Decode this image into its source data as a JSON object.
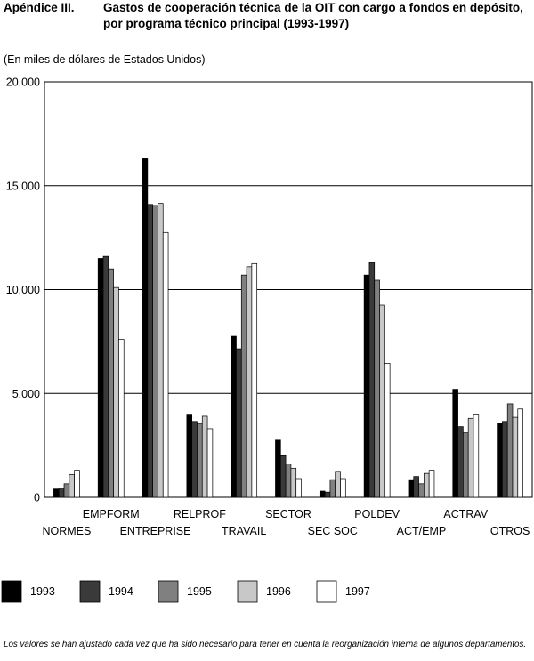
{
  "header": {
    "label": "Apéndice III.",
    "title": "Gastos de cooperación técnica de la OIT con cargo a fondos en depósito, por programa técnico principal (1993-1997)"
  },
  "units": "(En miles de dólares de Estados Unidos)",
  "note": "Los valores se han ajustado cada vez que ha sido necesario para tener en cuenta la reorganización interna de algunos departamentos.",
  "colors": {
    "1993": "#000000",
    "1994": "#3a3a3a",
    "1995": "#808080",
    "1996": "#c8c8c8",
    "1997": "#ffffff"
  },
  "chart_data": {
    "type": "bar",
    "title": "Gastos de cooperación técnica de la OIT con cargo a fondos en depósito, por programa técnico principal (1993-1997)",
    "ylabel": "(En miles de dólares de Estados Unidos)",
    "ylim": [
      0,
      20000
    ],
    "yticks": [
      0,
      5000,
      10000,
      15000,
      20000
    ],
    "ytick_labels": [
      "0",
      "5.000",
      "10.000",
      "15.000",
      "20.000"
    ],
    "grid": true,
    "legend_position": "bottom",
    "categories": [
      "NORMES",
      "EMPFORM",
      "ENTREPRISE",
      "RELPROF",
      "TRAVAIL",
      "SECTOR",
      "SEC SOC",
      "POLDEV",
      "ACT/EMP",
      "ACTRAV",
      "OTROS"
    ],
    "series": [
      {
        "name": "1993",
        "values": [
          400,
          11500,
          16300,
          4000,
          7750,
          2750,
          300,
          10700,
          850,
          5200,
          3550
        ]
      },
      {
        "name": "1994",
        "values": [
          450,
          11600,
          14100,
          3650,
          7150,
          2000,
          250,
          11300,
          1000,
          3400,
          3650
        ]
      },
      {
        "name": "1995",
        "values": [
          650,
          11000,
          14050,
          3550,
          10700,
          1600,
          850,
          10450,
          650,
          3100,
          4500
        ]
      },
      {
        "name": "1996",
        "values": [
          1100,
          10100,
          14150,
          3900,
          11100,
          1400,
          1250,
          9250,
          1150,
          3800,
          3850
        ]
      },
      {
        "name": "1997",
        "values": [
          1300,
          7600,
          12750,
          3300,
          11250,
          900,
          900,
          6450,
          1300,
          4000,
          4250
        ]
      }
    ]
  }
}
